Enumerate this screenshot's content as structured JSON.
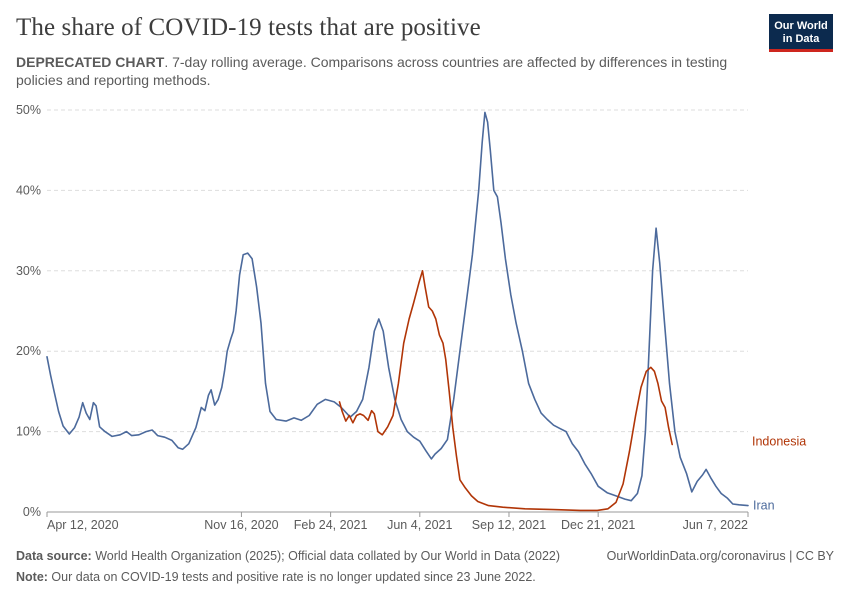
{
  "header": {
    "title": "The share of COVID-19 tests that are positive",
    "subtitle_bold": "DEPRECATED CHART",
    "subtitle_rest": ". 7-day rolling average. Comparisons across countries are affected by differences in testing policies and reporting methods.",
    "logo_line1": "Our World",
    "logo_line2": "in Data"
  },
  "footer": {
    "source_label": "Data source:",
    "source_text": " World Health Organization (2025); Official data collated by Our World in Data (2022)",
    "url_text": "OurWorldinData.org/coronavirus | CC BY",
    "note_label": "Note:",
    "note_text": " Our data on COVID-19 tests and positive rate is no longer updated since 23 June 2022."
  },
  "colors": {
    "iran": "#4c6a9c",
    "indonesia": "#b13507",
    "grid": "#dddddd",
    "axis": "#5b5b5b"
  },
  "chart_data": {
    "type": "line",
    "x_axis": {
      "type": "date",
      "range": [
        "2020-04-12",
        "2022-06-07"
      ],
      "tick_labels": [
        {
          "date": "2020-04-12",
          "label": "Apr 12, 2020"
        },
        {
          "date": "2020-11-16",
          "label": "Nov 16, 2020"
        },
        {
          "date": "2021-02-24",
          "label": "Feb 24, 2021"
        },
        {
          "date": "2021-06-04",
          "label": "Jun 4, 2021"
        },
        {
          "date": "2021-09-12",
          "label": "Sep 12, 2021"
        },
        {
          "date": "2021-12-21",
          "label": "Dec 21, 2021"
        },
        {
          "date": "2022-06-07",
          "label": "Jun 7, 2022"
        }
      ]
    },
    "y_axis": {
      "unit": "%",
      "range": [
        0,
        50
      ],
      "ticks": [
        {
          "value": 0,
          "label": "0%"
        },
        {
          "value": 10,
          "label": "10%"
        },
        {
          "value": 20,
          "label": "20%"
        },
        {
          "value": 30,
          "label": "30%"
        },
        {
          "value": 40,
          "label": "40%"
        },
        {
          "value": 50,
          "label": "50%"
        }
      ]
    },
    "grid": "horizontal dashed",
    "legend": "inline labels at line ends",
    "series": [
      {
        "name": "Iran",
        "color": "#4c6a9c",
        "points": [
          [
            "2020-04-12",
            19.3
          ],
          [
            "2020-04-16",
            17.0
          ],
          [
            "2020-04-20",
            15.0
          ],
          [
            "2020-04-25",
            12.5
          ],
          [
            "2020-04-30",
            10.7
          ],
          [
            "2020-05-07",
            9.7
          ],
          [
            "2020-05-13",
            10.5
          ],
          [
            "2020-05-18",
            11.8
          ],
          [
            "2020-05-22",
            13.6
          ],
          [
            "2020-05-26",
            12.3
          ],
          [
            "2020-05-30",
            11.5
          ],
          [
            "2020-06-03",
            13.6
          ],
          [
            "2020-06-06",
            13.2
          ],
          [
            "2020-06-10",
            10.6
          ],
          [
            "2020-06-16",
            10.0
          ],
          [
            "2020-06-24",
            9.4
          ],
          [
            "2020-07-03",
            9.6
          ],
          [
            "2020-07-10",
            10.0
          ],
          [
            "2020-07-16",
            9.5
          ],
          [
            "2020-07-24",
            9.6
          ],
          [
            "2020-08-01",
            10.0
          ],
          [
            "2020-08-08",
            10.2
          ],
          [
            "2020-08-14",
            9.5
          ],
          [
            "2020-08-22",
            9.3
          ],
          [
            "2020-08-30",
            8.9
          ],
          [
            "2020-09-06",
            8.0
          ],
          [
            "2020-09-11",
            7.8
          ],
          [
            "2020-09-18",
            8.5
          ],
          [
            "2020-09-26",
            10.5
          ],
          [
            "2020-10-02",
            13.0
          ],
          [
            "2020-10-06",
            12.6
          ],
          [
            "2020-10-10",
            14.5
          ],
          [
            "2020-10-13",
            15.2
          ],
          [
            "2020-10-17",
            13.3
          ],
          [
            "2020-10-21",
            14.0
          ],
          [
            "2020-10-25",
            15.5
          ],
          [
            "2020-10-28",
            17.5
          ],
          [
            "2020-10-31",
            20.0
          ],
          [
            "2020-11-04",
            21.5
          ],
          [
            "2020-11-07",
            22.5
          ],
          [
            "2020-11-10",
            25.0
          ],
          [
            "2020-11-14",
            29.5
          ],
          [
            "2020-11-18",
            32.0
          ],
          [
            "2020-11-23",
            32.2
          ],
          [
            "2020-11-28",
            31.5
          ],
          [
            "2020-12-03",
            28.0
          ],
          [
            "2020-12-08",
            23.5
          ],
          [
            "2020-12-13",
            16.0
          ],
          [
            "2020-12-18",
            12.5
          ],
          [
            "2020-12-25",
            11.5
          ],
          [
            "2021-01-05",
            11.3
          ],
          [
            "2021-01-14",
            11.7
          ],
          [
            "2021-01-22",
            11.4
          ],
          [
            "2021-01-31",
            12.0
          ],
          [
            "2021-02-09",
            13.4
          ],
          [
            "2021-02-18",
            14.0
          ],
          [
            "2021-02-28",
            13.7
          ],
          [
            "2021-03-08",
            13.0
          ],
          [
            "2021-03-18",
            11.8
          ],
          [
            "2021-03-25",
            12.5
          ],
          [
            "2021-04-01",
            14.0
          ],
          [
            "2021-04-08",
            18.0
          ],
          [
            "2021-04-14",
            22.5
          ],
          [
            "2021-04-19",
            24.0
          ],
          [
            "2021-04-24",
            22.5
          ],
          [
            "2021-04-30",
            18.0
          ],
          [
            "2021-05-07",
            14.0
          ],
          [
            "2021-05-14",
            11.5
          ],
          [
            "2021-05-21",
            10.0
          ],
          [
            "2021-05-28",
            9.3
          ],
          [
            "2021-06-04",
            8.8
          ],
          [
            "2021-06-11",
            7.6
          ],
          [
            "2021-06-17",
            6.6
          ],
          [
            "2021-06-21",
            7.2
          ],
          [
            "2021-06-28",
            7.9
          ],
          [
            "2021-07-05",
            9.0
          ],
          [
            "2021-07-12",
            14.0
          ],
          [
            "2021-07-19",
            20.0
          ],
          [
            "2021-07-26",
            26.0
          ],
          [
            "2021-08-02",
            32.0
          ],
          [
            "2021-08-09",
            40.0
          ],
          [
            "2021-08-13",
            46.0
          ],
          [
            "2021-08-16",
            49.7
          ],
          [
            "2021-08-19",
            48.5
          ],
          [
            "2021-08-22",
            45.0
          ],
          [
            "2021-08-26",
            40.0
          ],
          [
            "2021-08-30",
            39.2
          ],
          [
            "2021-09-03",
            36.0
          ],
          [
            "2021-09-08",
            31.5
          ],
          [
            "2021-09-14",
            27.0
          ],
          [
            "2021-09-20",
            23.5
          ],
          [
            "2021-09-27",
            20.0
          ],
          [
            "2021-10-04",
            16.0
          ],
          [
            "2021-10-11",
            14.0
          ],
          [
            "2021-10-18",
            12.3
          ],
          [
            "2021-10-25",
            11.5
          ],
          [
            "2021-11-01",
            10.8
          ],
          [
            "2021-11-08",
            10.4
          ],
          [
            "2021-11-15",
            10.0
          ],
          [
            "2021-11-22",
            8.5
          ],
          [
            "2021-11-29",
            7.5
          ],
          [
            "2021-12-06",
            6.0
          ],
          [
            "2021-12-13",
            4.8
          ],
          [
            "2021-12-21",
            3.2
          ],
          [
            "2021-12-31",
            2.4
          ],
          [
            "2022-01-10",
            2.0
          ],
          [
            "2022-01-20",
            1.6
          ],
          [
            "2022-01-27",
            1.4
          ],
          [
            "2022-02-03",
            2.3
          ],
          [
            "2022-02-08",
            4.5
          ],
          [
            "2022-02-12",
            10.0
          ],
          [
            "2022-02-16",
            20.0
          ],
          [
            "2022-02-20",
            30.0
          ],
          [
            "2022-02-24",
            35.3
          ],
          [
            "2022-02-28",
            31.0
          ],
          [
            "2022-03-05",
            24.0
          ],
          [
            "2022-03-11",
            16.0
          ],
          [
            "2022-03-17",
            10.0
          ],
          [
            "2022-03-23",
            6.8
          ],
          [
            "2022-03-30",
            4.8
          ],
          [
            "2022-04-05",
            2.5
          ],
          [
            "2022-04-11",
            3.8
          ],
          [
            "2022-04-17",
            4.6
          ],
          [
            "2022-04-21",
            5.3
          ],
          [
            "2022-04-26",
            4.3
          ],
          [
            "2022-05-02",
            3.2
          ],
          [
            "2022-05-08",
            2.3
          ],
          [
            "2022-05-15",
            1.7
          ],
          [
            "2022-05-21",
            1.0
          ],
          [
            "2022-05-28",
            0.9
          ],
          [
            "2022-06-07",
            0.8
          ]
        ]
      },
      {
        "name": "Indonesia",
        "color": "#b13507",
        "points": [
          [
            "2021-03-06",
            13.7
          ],
          [
            "2021-03-09",
            12.5
          ],
          [
            "2021-03-13",
            11.3
          ],
          [
            "2021-03-17",
            12.0
          ],
          [
            "2021-03-21",
            11.1
          ],
          [
            "2021-03-25",
            12.0
          ],
          [
            "2021-03-29",
            12.2
          ],
          [
            "2021-04-02",
            12.0
          ],
          [
            "2021-04-07",
            11.4
          ],
          [
            "2021-04-11",
            12.6
          ],
          [
            "2021-04-14",
            12.2
          ],
          [
            "2021-04-18",
            10.0
          ],
          [
            "2021-04-23",
            9.6
          ],
          [
            "2021-04-29",
            10.6
          ],
          [
            "2021-05-05",
            12.0
          ],
          [
            "2021-05-11",
            16.0
          ],
          [
            "2021-05-17",
            21.0
          ],
          [
            "2021-05-23",
            24.0
          ],
          [
            "2021-05-28",
            26.0
          ],
          [
            "2021-06-03",
            28.5
          ],
          [
            "2021-06-07",
            30.0
          ],
          [
            "2021-06-10",
            28.0
          ],
          [
            "2021-06-14",
            25.5
          ],
          [
            "2021-06-18",
            25.0
          ],
          [
            "2021-06-22",
            24.0
          ],
          [
            "2021-06-26",
            22.0
          ],
          [
            "2021-06-30",
            21.0
          ],
          [
            "2021-07-03",
            19.0
          ],
          [
            "2021-07-07",
            15.0
          ],
          [
            "2021-07-11",
            10.5
          ],
          [
            "2021-07-15",
            7.0
          ],
          [
            "2021-07-19",
            4.0
          ],
          [
            "2021-07-25",
            3.0
          ],
          [
            "2021-08-01",
            2.0
          ],
          [
            "2021-08-08",
            1.3
          ],
          [
            "2021-08-20",
            0.8
          ],
          [
            "2021-09-05",
            0.6
          ],
          [
            "2021-09-30",
            0.4
          ],
          [
            "2021-11-01",
            0.3
          ],
          [
            "2021-12-01",
            0.2
          ],
          [
            "2021-12-20",
            0.2
          ],
          [
            "2022-01-01",
            0.4
          ],
          [
            "2022-01-10",
            1.2
          ],
          [
            "2022-01-18",
            3.5
          ],
          [
            "2022-01-25",
            7.5
          ],
          [
            "2022-02-01",
            12.0
          ],
          [
            "2022-02-07",
            15.5
          ],
          [
            "2022-02-13",
            17.5
          ],
          [
            "2022-02-18",
            18.0
          ],
          [
            "2022-02-22",
            17.5
          ],
          [
            "2022-02-26",
            16.0
          ],
          [
            "2022-03-02",
            13.8
          ],
          [
            "2022-03-06",
            13.0
          ],
          [
            "2022-03-10",
            10.5
          ],
          [
            "2022-03-14",
            8.4
          ]
        ]
      }
    ]
  }
}
